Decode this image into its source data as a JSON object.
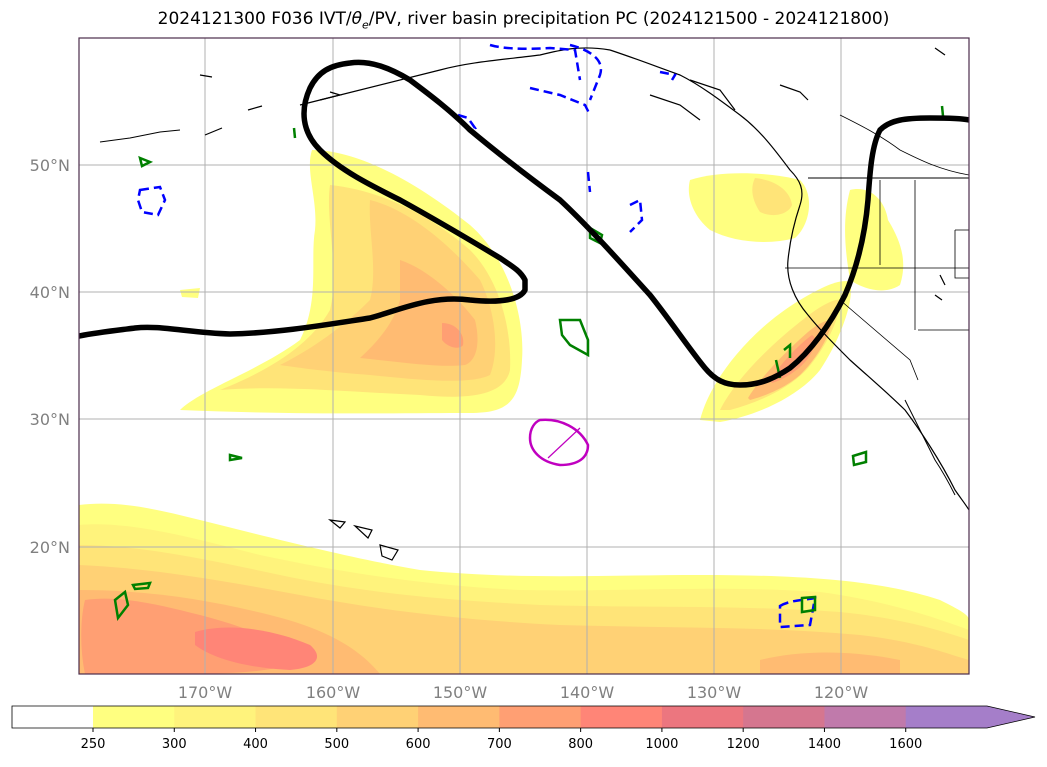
{
  "title": {
    "prefix": "2024121300 F036 IVT/",
    "theta": "θ",
    "theta_sub": "e",
    "suffix": "/PV, river basin precipitation PC (2024121500 - 2024121800)"
  },
  "map": {
    "lat_labels": [
      "50°N",
      "40°N",
      "30°N",
      "20°N"
    ],
    "lon_labels": [
      "170°W",
      "160°W",
      "150°W",
      "140°W",
      "130°W",
      "120°W"
    ],
    "colors": {
      "ivt_contour": "#000000",
      "pv_positive": "#008000",
      "pv_negative": "#0000ff",
      "precip_pc": "#c000c0",
      "coastline": "#000000",
      "grid": "#b0b0b0",
      "frame": "#4b2c4b"
    }
  },
  "colorbar": {
    "ticks": [
      "250",
      "300",
      "400",
      "500",
      "600",
      "700",
      "800",
      "1000",
      "1200",
      "1400",
      "1600"
    ],
    "colors": [
      "#ffff80",
      "#fff37c",
      "#ffe478",
      "#ffd175",
      "#ffbb72",
      "#ff9f73",
      "#ff8577",
      "#ec767f",
      "#d5768f",
      "#c07aab",
      "#a57ec9"
    ],
    "extend": "max"
  }
}
